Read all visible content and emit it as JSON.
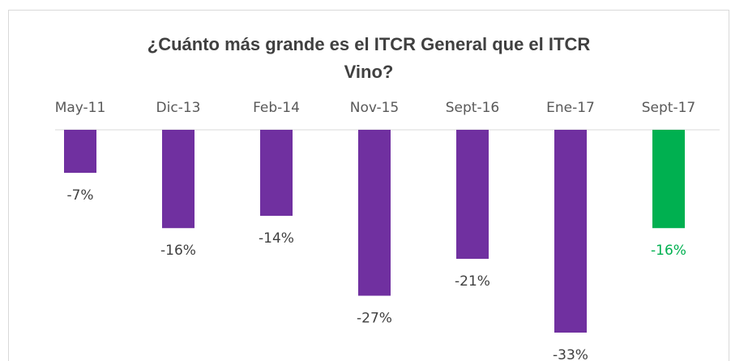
{
  "chart_data": {
    "type": "bar",
    "title": "¿Cuánto más grande es el ITCR General que el ITCR Vino?",
    "categories": [
      "May-11",
      "Dic-13",
      "Feb-14",
      "Nov-15",
      "Sept-16",
      "Ene-17",
      "Sept-17"
    ],
    "values": [
      -7,
      -16,
      -14,
      -27,
      -21,
      -33,
      -16
    ],
    "value_labels": [
      "-7%",
      "-16%",
      "-14%",
      "-27%",
      "-21%",
      "-33%",
      "-16%"
    ],
    "colors": [
      "#7030a0",
      "#7030a0",
      "#7030a0",
      "#7030a0",
      "#7030a0",
      "#7030a0",
      "#00b050"
    ]
  }
}
